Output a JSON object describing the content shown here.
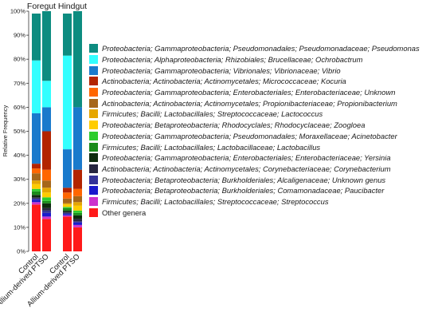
{
  "chart_data": {
    "type": "bar",
    "stacked": true,
    "ylabel": "Relative Frequency",
    "ylim": [
      0,
      100
    ],
    "yticks": [
      "0%",
      "10%",
      "20%",
      "30%",
      "40%",
      "50%",
      "60%",
      "70%",
      "80%",
      "90%",
      "100%"
    ],
    "groups": [
      {
        "label": "Foregut",
        "categories": [
          "Control",
          "Allium-derived PTSO"
        ]
      },
      {
        "label": "Hindgut",
        "categories": [
          "Control",
          "Allium-derived PTSO"
        ]
      }
    ],
    "series": [
      {
        "name": "Other genera",
        "color": "#ff1a1a",
        "values": [
          19.5,
          13.5,
          14.5,
          10
        ]
      },
      {
        "name": "Firmicutes; Bacilli; Lactobacillales; Streptococcaceae; Streptococcus",
        "color": "#cc33cc",
        "values": [
          1,
          1,
          0.5,
          1
        ]
      },
      {
        "name": "Proteobacteria; Betaproteobacteria; Burkholderiales; Comamonadaceae; Paucibacter",
        "color": "#1a1acc",
        "values": [
          1,
          1.5,
          0.5,
          1
        ]
      },
      {
        "name": "Proteobacteria; Betaproteobacteria; Burkholderiales; Alcaligenaceae; Unknown genus",
        "color": "#333399",
        "values": [
          0.5,
          1,
          0.5,
          0.5
        ]
      },
      {
        "name": "Actinobacteria; Actinobacteria; Actinomycetales; Corynebacteriaceae; Corynebacterium",
        "color": "#262640",
        "values": [
          0.5,
          1,
          0.5,
          1
        ]
      },
      {
        "name": "Proteobacteria; Gammaproteobacteria; Enterobacteriales; Enterobacteriaceae; Yersinia",
        "color": "#0d2b0d",
        "values": [
          1,
          2,
          0.5,
          1.5
        ]
      },
      {
        "name": "Firmicutes; Bacilli; Lactobacillales; Lactobacillaceae; Lactobacillus",
        "color": "#1a8c1a",
        "values": [
          1.5,
          1,
          1,
          1
        ]
      },
      {
        "name": "Proteobacteria; Gammaproteobacteria; Pseudomonadales; Moraxellaceae; Acinetobacter",
        "color": "#2ecc2e",
        "values": [
          1,
          1.5,
          0.5,
          1
        ]
      },
      {
        "name": "Proteobacteria; Betaproteobacteria; Rhodocyclales; Rhodocyclaceae; Zoogloea",
        "color": "#ffcc00",
        "values": [
          2,
          2,
          1,
          2
        ]
      },
      {
        "name": "Firmicutes; Bacilli; Lactobacillales; Streptococcaceae; Lactococcus",
        "color": "#e6a600",
        "values": [
          1.5,
          2,
          0.5,
          1.5
        ]
      },
      {
        "name": "Actinobacteria; Actinobacteria; Actinomycetales; Propionibacteriaceae; Propionibacterium",
        "color": "#a6661a",
        "values": [
          3,
          3,
          2,
          2.5
        ]
      },
      {
        "name": "Proteobacteria; Gammaproteobacteria; Enterobacteriales; Enterobacteriaceae; Unknown",
        "color": "#ff6600",
        "values": [
          2,
          4.5,
          2.5,
          3
        ]
      },
      {
        "name": "Actinobacteria; Actinobacteria; Actinomycetales; Micrococcaceae; Kocuria",
        "color": "#b32400",
        "values": [
          2,
          16,
          2,
          8
        ]
      },
      {
        "name": "Proteobacteria; Gammaproteobacteria; Vibrionales; Vibrionaceae; Vibrio",
        "color": "#1a7acc",
        "values": [
          21,
          10,
          16,
          26
        ]
      },
      {
        "name": "Proteobacteria; Alphaproteobacteria; Rhizobiales; Brucellaceae; Ochrobactrum",
        "color": "#33ffff",
        "values": [
          22,
          11,
          39,
          0
        ]
      },
      {
        "name": "Proteobacteria; Gammaproteobacteria; Pseudomonadales; Pseudomonadaceae; Pseudomonas",
        "color": "#0d8c80",
        "values": [
          19.5,
          29,
          17.5,
          40
        ]
      }
    ],
    "legend": {
      "position": "right",
      "entries": [
        {
          "label": "Proteobacteria; Gammaproteobacteria; Pseudomonadales; Pseudomonadaceae; Pseudomonas",
          "color": "#0d8c80",
          "italic": true
        },
        {
          "label": "Proteobacteria; Alphaproteobacteria; Rhizobiales; Brucellaceae; Ochrobactrum",
          "color": "#33ffff",
          "italic": true
        },
        {
          "label": "Proteobacteria; Gammaproteobacteria; Vibrionales; Vibrionaceae; Vibrio",
          "color": "#1a7acc",
          "italic": true
        },
        {
          "label": "Actinobacteria; Actinobacteria; Actinomycetales; Micrococcaceae; Kocuria",
          "color": "#b32400",
          "italic": true
        },
        {
          "label": "Proteobacteria; Gammaproteobacteria; Enterobacteriales; Enterobacteriaceae; Unknown",
          "color": "#ff6600",
          "italic": true
        },
        {
          "label": "Actinobacteria; Actinobacteria; Actinomycetales; Propionibacteriaceae; Propionibacterium",
          "color": "#a6661a",
          "italic": true
        },
        {
          "label": "Firmicutes; Bacilli; Lactobacillales; Streptococcaceae; Lactococcus",
          "color": "#e6a600",
          "italic": true
        },
        {
          "label": "Proteobacteria; Betaproteobacteria; Rhodocyclales; Rhodocyclaceae; Zoogloea",
          "color": "#ffcc00",
          "italic": true
        },
        {
          "label": "Proteobacteria; Gammaproteobacteria; Pseudomonadales; Moraxellaceae; Acinetobacter",
          "color": "#2ecc2e",
          "italic": true
        },
        {
          "label": "Firmicutes; Bacilli; Lactobacillales; Lactobacillaceae; Lactobacillus",
          "color": "#1a8c1a",
          "italic": true
        },
        {
          "label": "Proteobacteria; Gammaproteobacteria; Enterobacteriales; Enterobacteriaceae; Yersinia",
          "color": "#0d2b0d",
          "italic": true
        },
        {
          "label": "Actinobacteria; Actinobacteria; Actinomycetales; Corynebacteriaceae; Corynebacterium",
          "color": "#262640",
          "italic": true
        },
        {
          "label": "Proteobacteria; Betaproteobacteria; Burkholderiales; Alcaligenaceae; Unknown genus",
          "color": "#333399",
          "italic": true
        },
        {
          "label": "Proteobacteria; Betaproteobacteria; Burkholderiales; Comamonadaceae; Paucibacter",
          "color": "#1a1acc",
          "italic": true
        },
        {
          "label": "Firmicutes; Bacilli; Lactobacillales; Streptococcaceae; Streptococcus",
          "color": "#cc33cc",
          "italic": true
        },
        {
          "label": "Other genera",
          "color": "#ff1a1a",
          "italic": false
        }
      ]
    }
  }
}
